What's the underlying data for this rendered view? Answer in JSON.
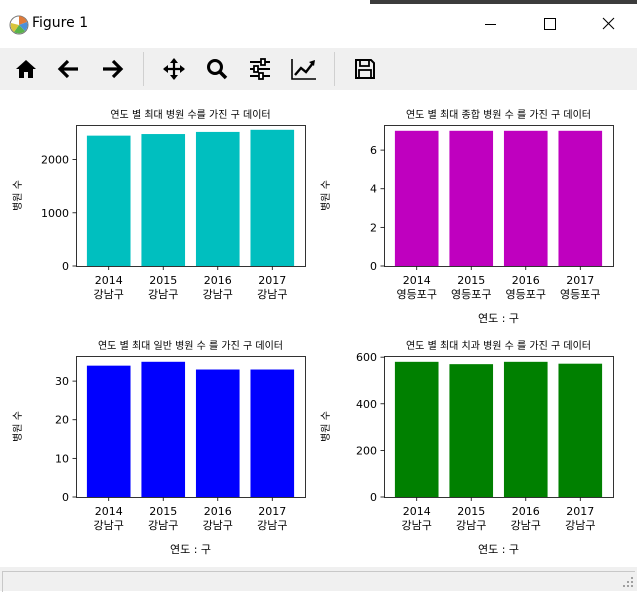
{
  "window": {
    "title": "Figure 1",
    "accent_color": "#3c3c3c"
  },
  "toolbar": {
    "items": [
      {
        "name": "home-button",
        "icon": "home-icon"
      },
      {
        "name": "back-button",
        "icon": "arrow-left-icon"
      },
      {
        "name": "forward-button",
        "icon": "arrow-right-icon"
      },
      {
        "name": "pan-button",
        "icon": "move-icon"
      },
      {
        "name": "zoom-button",
        "icon": "magnifier-icon"
      },
      {
        "name": "subplots-button",
        "icon": "sliders-icon"
      },
      {
        "name": "edit-axes-button",
        "icon": "line-chart-icon"
      },
      {
        "name": "save-button",
        "icon": "floppy-disk-icon"
      }
    ]
  },
  "chart_data": [
    {
      "type": "bar",
      "title": "연도 별 최대 병원 수를 가진 구 데이터",
      "xlabel": "",
      "ylabel": "병원 수",
      "categories": [
        "2014\n강남구",
        "2015\n강남구",
        "2016\n강남구",
        "2017\n강남구"
      ],
      "values": [
        2450,
        2480,
        2520,
        2560
      ],
      "ylim": [
        0,
        2650
      ],
      "yticks": [
        0,
        1000,
        2000
      ],
      "color": "#00bfbf"
    },
    {
      "type": "bar",
      "title": "연도 별 최대 종합 병원 수 를 가진 구 데이터",
      "xlabel": "연도 : 구",
      "ylabel": "병원 수",
      "categories": [
        "2014\n영등포구",
        "2015\n영등포구",
        "2016\n영등포구",
        "2017\n영등포구"
      ],
      "values": [
        7,
        7,
        7,
        7
      ],
      "ylim": [
        0,
        7.3
      ],
      "yticks": [
        0,
        2,
        4,
        6
      ],
      "color": "#bf00bf"
    },
    {
      "type": "bar",
      "title": "연도 별 최대 일반 병원 수 를 가진 구 데이터",
      "xlabel": "연도 : 구",
      "ylabel": "병원 수",
      "categories": [
        "2014\n강남구",
        "2015\n강남구",
        "2016\n강남구",
        "2017\n강남구"
      ],
      "values": [
        34,
        35,
        33,
        33
      ],
      "ylim": [
        0,
        36.5
      ],
      "yticks": [
        0,
        10,
        20,
        30
      ],
      "color": "#0000ff"
    },
    {
      "type": "bar",
      "title": "연도 별 최대 치과 병원 수 를 가진 구 데이터",
      "xlabel": "연도 : 구",
      "ylabel": "병원 수",
      "categories": [
        "2014\n강남구",
        "2015\n강남구",
        "2016\n강남구",
        "2017\n강남구"
      ],
      "values": [
        580,
        570,
        580,
        572
      ],
      "ylim": [
        0,
        605
      ],
      "yticks": [
        0,
        200,
        400,
        600
      ],
      "color": "#008000"
    }
  ]
}
